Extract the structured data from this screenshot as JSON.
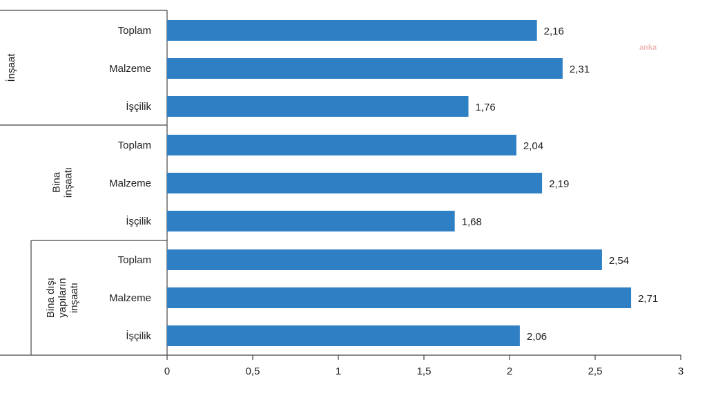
{
  "chart_data": {
    "type": "bar",
    "orientation": "horizontal",
    "groups": [
      {
        "name": "İnşaat",
        "categories": [
          "Toplam",
          "Malzeme",
          "İşçilik"
        ],
        "values": [
          2.16,
          2.31,
          1.76
        ]
      },
      {
        "name": "Bina inşaatı",
        "categories": [
          "Toplam",
          "Malzeme",
          "İşçilik"
        ],
        "values": [
          2.04,
          2.19,
          1.68
        ]
      },
      {
        "name": "Bina dışı yapıların inşaatı",
        "categories": [
          "Toplam",
          "Malzeme",
          "İşçilik"
        ],
        "values": [
          2.54,
          2.71,
          2.06
        ]
      }
    ],
    "value_labels": [
      [
        "2,16",
        "2,31",
        "1,76"
      ],
      [
        "2,04",
        "2,19",
        "1,68"
      ],
      [
        "2,54",
        "2,71",
        "2,06"
      ]
    ],
    "xlim": [
      0,
      3
    ],
    "xticks": [
      0,
      0.5,
      1,
      1.5,
      2,
      2.5,
      3
    ],
    "xtick_labels": [
      "0",
      "0,5",
      "1",
      "1,5",
      "2",
      "2,5",
      "3"
    ],
    "title": "",
    "xlabel": "",
    "ylabel": "",
    "bar_color": "#2e7fc4",
    "grid": false,
    "legend": "none"
  },
  "group_label_lines": [
    [
      "İnşaat"
    ],
    [
      "Bina",
      "inşaatı"
    ],
    [
      "Bina dışı",
      "yapıların",
      "inşaatı"
    ]
  ],
  "watermark": "anka"
}
